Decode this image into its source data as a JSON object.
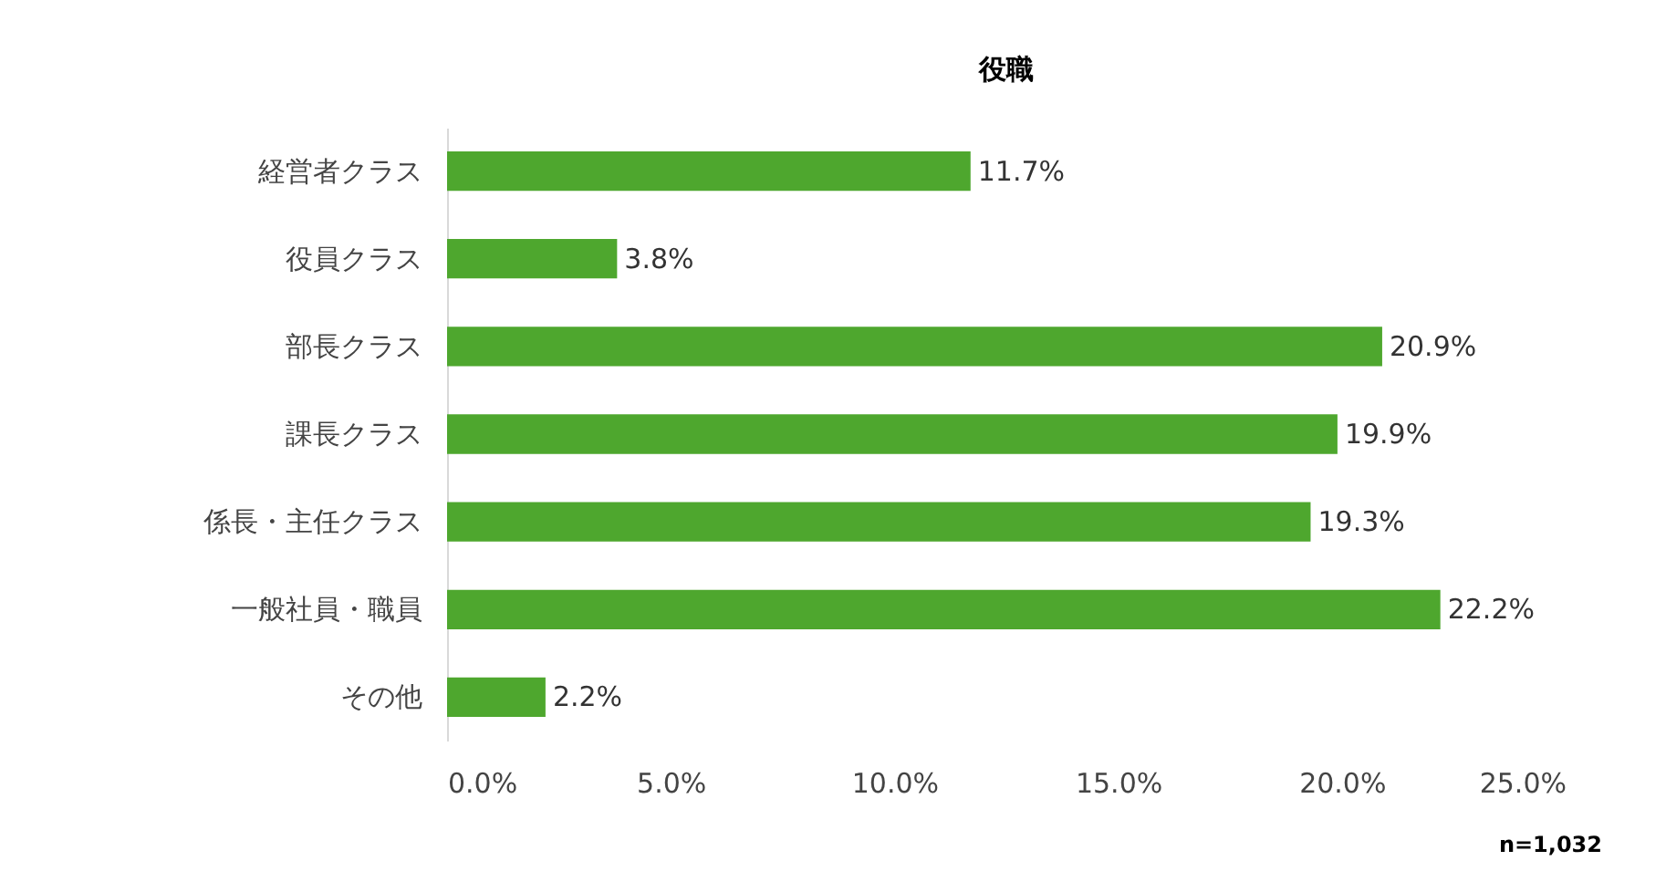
{
  "chart_data": {
    "type": "bar",
    "orientation": "horizontal",
    "title": "役職",
    "categories": [
      "経営者クラス",
      "役員クラス",
      "部長クラス",
      "課長クラス",
      "係長・主任クラス",
      "一般社員・職員",
      "その他"
    ],
    "values": [
      11.7,
      3.8,
      20.9,
      19.9,
      19.3,
      22.2,
      2.2
    ],
    "value_labels": [
      "11.7%",
      "3.8%",
      "20.9%",
      "19.9%",
      "19.3%",
      "22.2%",
      "2.2%"
    ],
    "color": "#4ea72e",
    "xlim": [
      0,
      25
    ],
    "xticks": [
      {
        "value": 0,
        "label": "0.0%"
      },
      {
        "value": 5,
        "label": "5.0%"
      },
      {
        "value": 10,
        "label": "10.0%"
      },
      {
        "value": 15,
        "label": "15.0%"
      },
      {
        "value": 20,
        "label": "20.0%"
      },
      {
        "value": 25,
        "label": "25.0%"
      }
    ],
    "grid": false,
    "annotations": [
      "n=1,032"
    ]
  }
}
